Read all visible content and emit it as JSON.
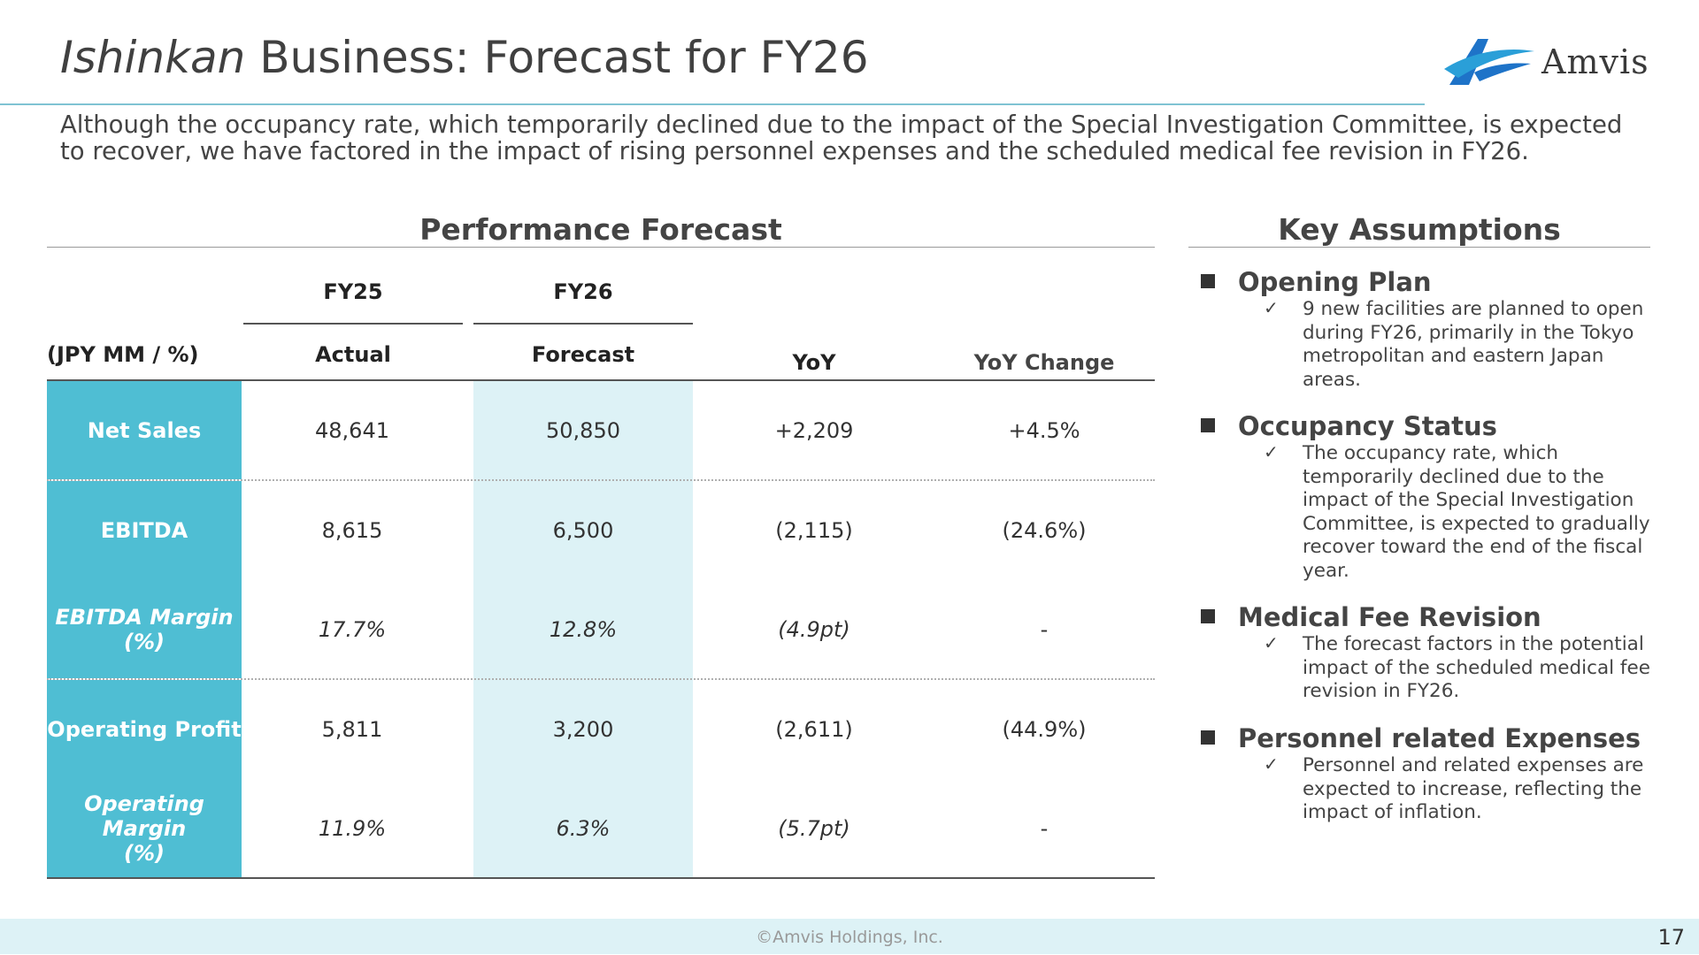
{
  "title": {
    "italic": "Ishinkan",
    "rest": " Business: Forecast for FY26"
  },
  "logo": {
    "text": "Amvis"
  },
  "intro": "Although the occupancy rate, which temporarily declined due to the impact of the Special Investigation Committee, is expected to recover, we have factored in the impact of rising personnel expenses and the scheduled medical fee revision in FY26.",
  "forecast": {
    "section_title": "Performance Forecast",
    "unit_label": "(JPY  MM / %)",
    "fy25": "FY25",
    "fy26": "FY26",
    "col_actual": "Actual",
    "col_forecast": "Forecast",
    "col_yoy": "YoY",
    "col_yoy_change": "YoY Change",
    "rows": [
      {
        "metric": "Net Sales",
        "fy25": "48,641",
        "fy26": "50,850",
        "yoy": "+2,209",
        "yoy_change": "+4.5%"
      },
      {
        "metric": "EBITDA",
        "fy25": "8,615",
        "fy26": "6,500",
        "yoy": "(2,115)",
        "yoy_change": "(24.6%)"
      },
      {
        "metric": "EBITDA Margin\n(%)",
        "fy25": "17.7%",
        "fy26": "12.8%",
        "yoy": "(4.9pt)",
        "yoy_change": "-"
      },
      {
        "metric": "Operating Profit",
        "fy25": "5,811",
        "fy26": "3,200",
        "yoy": "(2,611)",
        "yoy_change": "(44.9%)"
      },
      {
        "metric": "Operating Margin\n(%)",
        "fy25": "11.9%",
        "fy26": "6.3%",
        "yoy": "(5.7pt)",
        "yoy_change": "-"
      }
    ]
  },
  "assumptions": {
    "section_title": "Key Assumptions",
    "check": "✓",
    "items": [
      {
        "heading": "Opening Plan",
        "body": "9 new facilities are planned to open during FY26, primarily in the Tokyo metropolitan and eastern Japan areas."
      },
      {
        "heading": "Occupancy Status",
        "body": "The occupancy rate, which temporarily declined due to the impact of the Special Investigation Committee, is expected to gradually recover toward the end of the fiscal year."
      },
      {
        "heading": "Medical Fee Revision",
        "body": "The forecast factors in the potential impact of the scheduled medical fee revision in FY26."
      },
      {
        "heading": "Personnel related Expenses",
        "body": "Personnel and related expenses are expected to increase, reflecting the impact of inflation."
      }
    ]
  },
  "footer": {
    "copyright": "©Amvis Holdings, Inc.",
    "page": "17"
  },
  "colors": {
    "accent_teal": "#4fbed3",
    "light_teal": "#ddf2f6",
    "title_rule": "#7fc3d3"
  }
}
